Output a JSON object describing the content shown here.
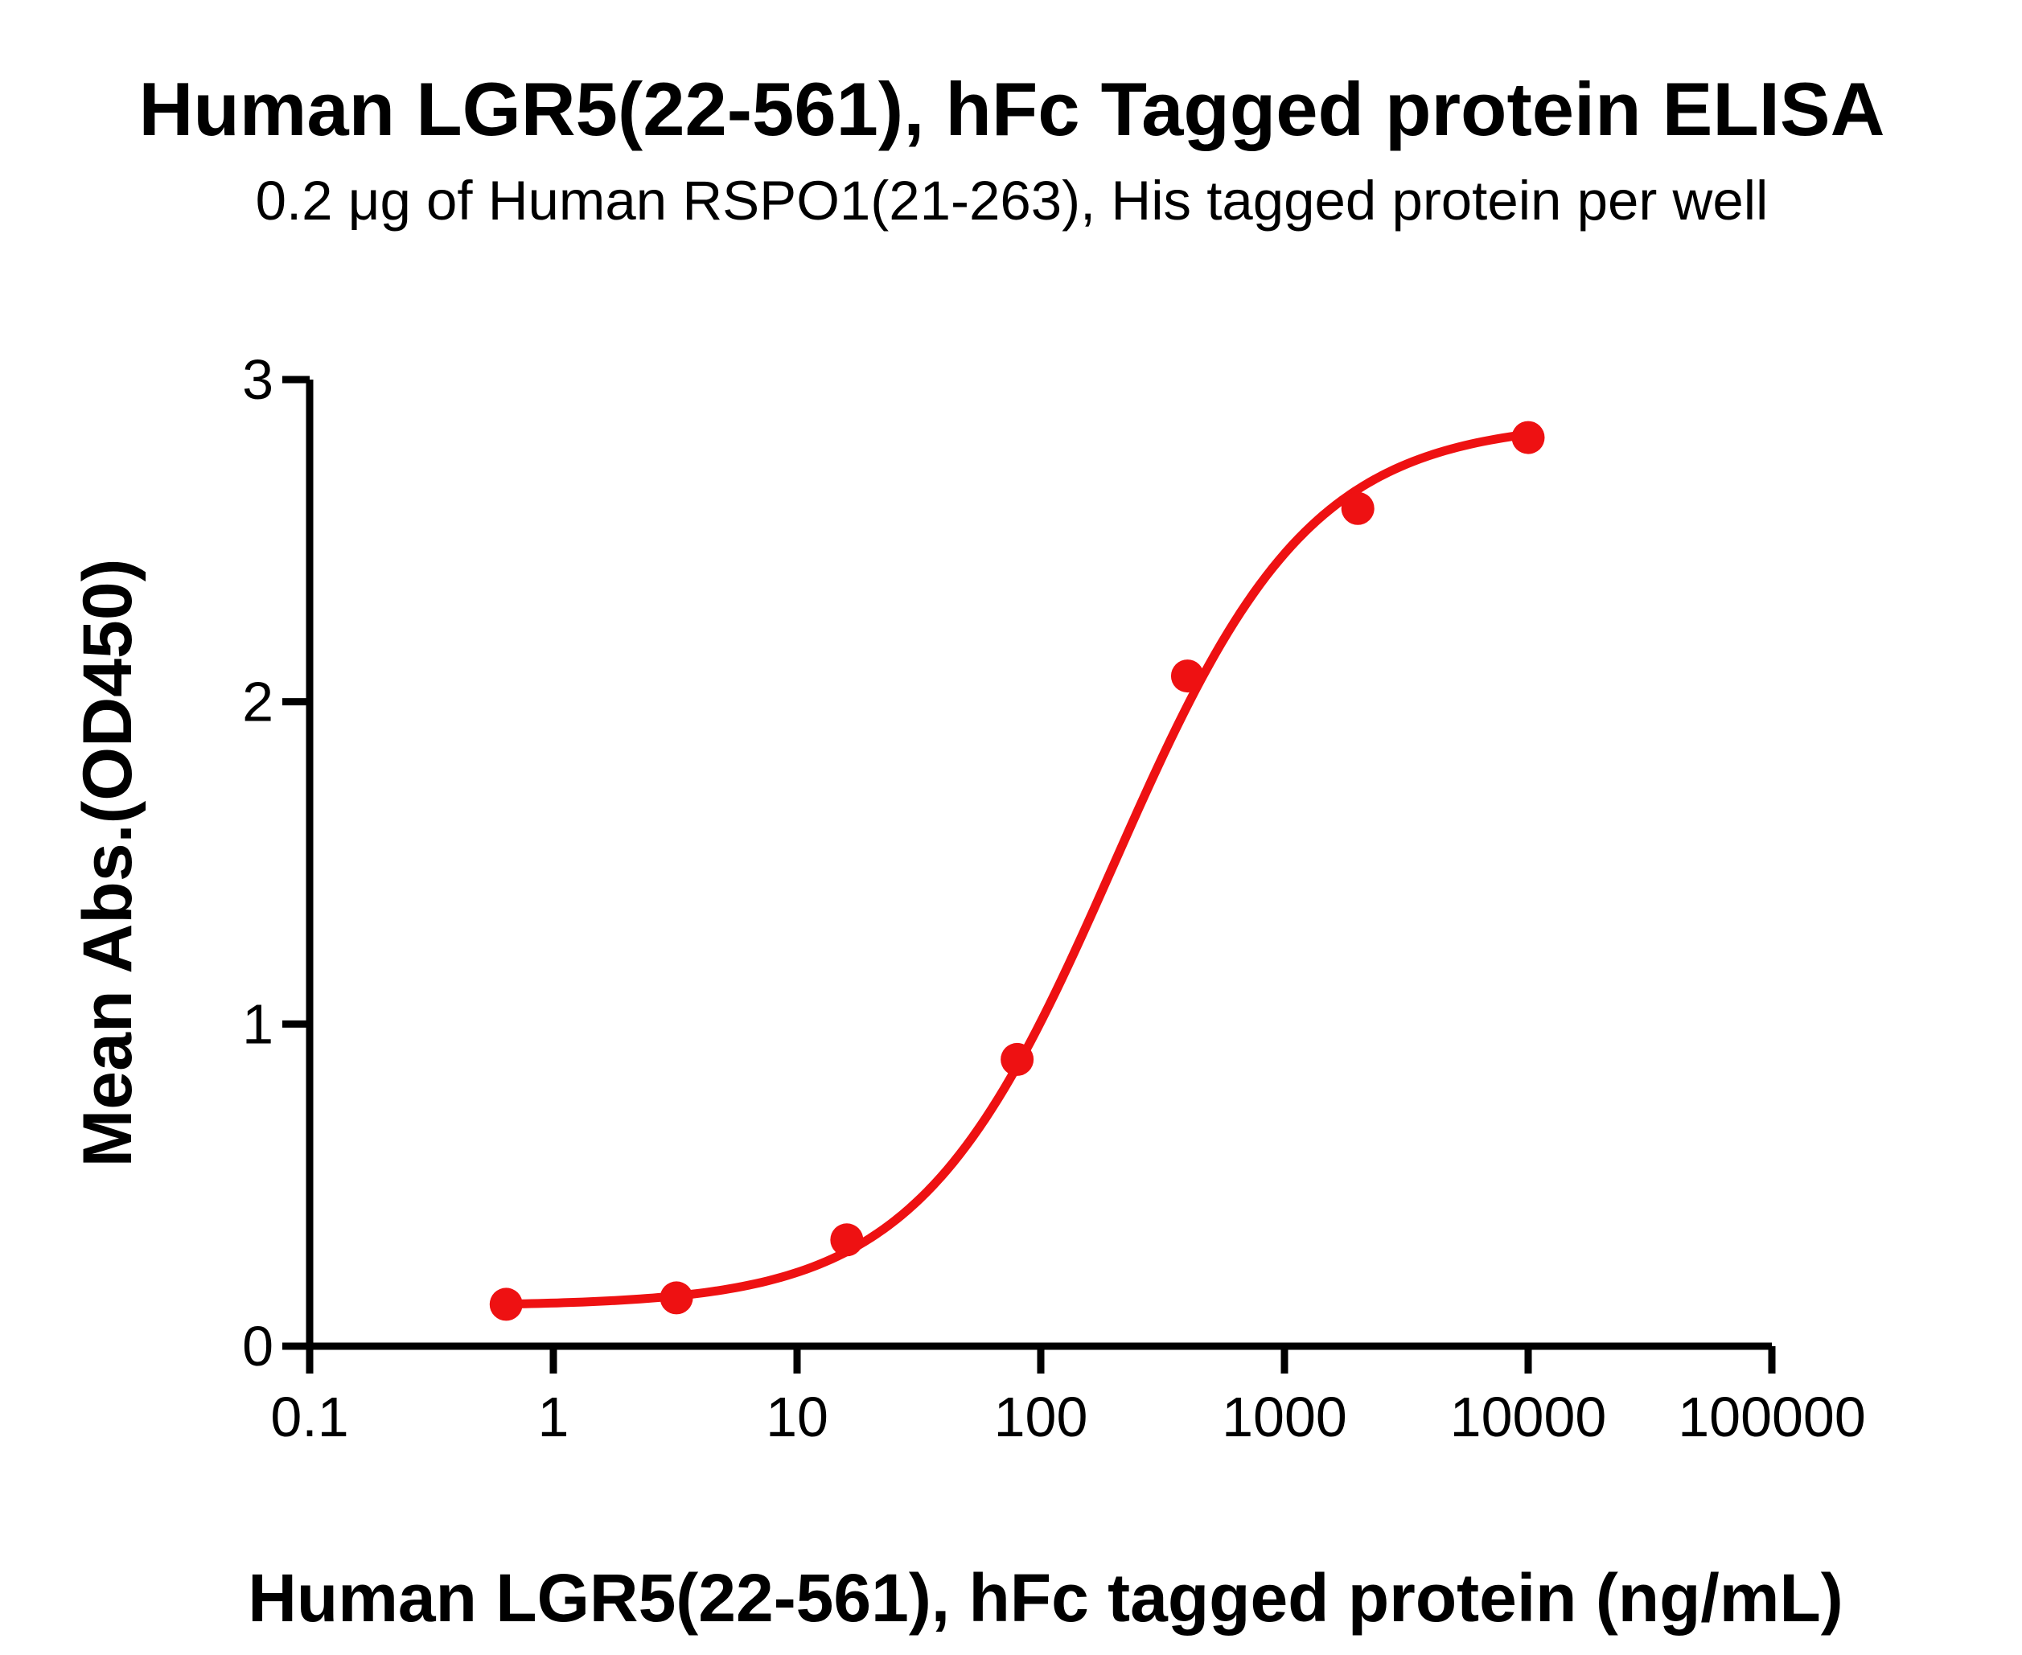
{
  "title": "Human LGR5(22-561), hFc Tagged protein ELISA",
  "subtitle": "0.2 μg of Human RSPO1(21-263), His tagged protein per well",
  "chart_data": {
    "type": "scatter",
    "title": "Human LGR5(22-561), hFc Tagged protein ELISA",
    "subtitle": "0.2 μg of Human RSPO1(21-263), His tagged protein per well",
    "xlabel": "Human LGR5(22-561), hFc tagged protein (ng/mL)",
    "ylabel": "Mean Abs.(OD450)",
    "x_scale": "log10",
    "xlim": [
      0.1,
      100000
    ],
    "ylim": [
      0,
      3
    ],
    "x_ticks": [
      "0.1",
      "1",
      "10",
      "100",
      "1000",
      "10000",
      "100000"
    ],
    "x_tick_values": [
      0.1,
      1,
      10,
      100,
      1000,
      10000,
      100000
    ],
    "y_ticks": [
      "0",
      "1",
      "2",
      "3"
    ],
    "y_tick_values": [
      0,
      1,
      2,
      3
    ],
    "grid": false,
    "legend": "none",
    "series": [
      {
        "name": "Human LGR5(22-561), hFc tagged protein",
        "marker": "circle",
        "color": "#EE1112",
        "x_ng_ml": [
          0.64,
          3.2,
          16,
          80,
          400,
          2000,
          10000
        ],
        "y_od450": [
          0.13,
          0.15,
          0.33,
          0.89,
          2.08,
          2.6,
          2.82
        ]
      }
    ],
    "curve_fit": {
      "model": "4PL sigmoid",
      "bottom": 0.125,
      "top": 2.87,
      "ec50_ng_ml": 200,
      "hill": 1.08,
      "x_range": [
        0.64,
        10000
      ],
      "color": "#EE1112"
    },
    "axis_color": "#000000"
  }
}
